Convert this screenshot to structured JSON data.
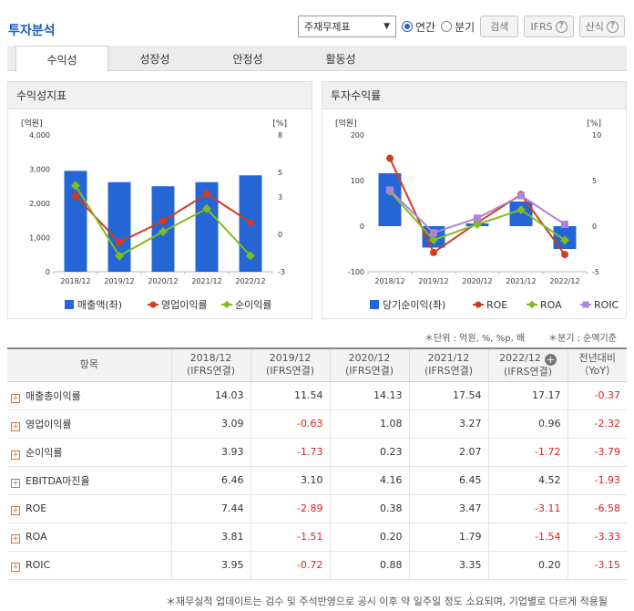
{
  "title": "투자분석",
  "controls": {
    "statement": "주재무제표",
    "radio_annual": "연간",
    "radio_quarter": "분기",
    "search_label": "검색",
    "ifrs_label": "IFRS",
    "formula_label": "산식",
    "help_glyph": "?"
  },
  "tabs": [
    "수익성",
    "성장성",
    "안정성",
    "활동성"
  ],
  "left_panel": {
    "title": "수익성지표",
    "unit_left": "[억원]",
    "unit_right": "[%]",
    "legend": [
      "매출액(좌)",
      "영업이익률",
      "순이익률"
    ]
  },
  "right_panel": {
    "title": "투자수익률",
    "unit_left": "[억원]",
    "unit_right": "[%]",
    "legend": [
      "당기순이익(좌)",
      "ROE",
      "ROA",
      "ROIC"
    ]
  },
  "chart_data": [
    {
      "type": "bar",
      "categories": [
        "2018/12",
        "2019/12",
        "2020/12",
        "2021/12",
        "2022/12"
      ],
      "series": [
        {
          "name": "매출액(좌)",
          "type": "bar",
          "axis": "left",
          "values": [
            2950,
            2620,
            2500,
            2620,
            2820
          ]
        },
        {
          "name": "영업이익률",
          "type": "line",
          "axis": "right",
          "values": [
            3.09,
            -0.63,
            1.08,
            3.27,
            0.96
          ]
        },
        {
          "name": "순이익률",
          "type": "line",
          "axis": "right",
          "values": [
            3.93,
            -1.73,
            0.23,
            2.07,
            -1.72
          ]
        }
      ],
      "y_left": {
        "min": 0,
        "max": 4000,
        "ticks": [
          "0",
          "1,000",
          "2,000",
          "3,000",
          "4,000"
        ]
      },
      "y_right": {
        "min": -3,
        "max": 8,
        "ticks": [
          "-3",
          "0",
          "3",
          "5",
          "8"
        ]
      },
      "colors": {
        "bar": "#2466d6",
        "line1": "#d03c1e",
        "line2": "#7fbc1e"
      },
      "grid": false,
      "legend_placement": "bottom"
    },
    {
      "type": "bar",
      "categories": [
        "2018/12",
        "2019/12",
        "2020/12",
        "2021/12",
        "2022/12"
      ],
      "series": [
        {
          "name": "당기순이익(좌)",
          "type": "bar",
          "axis": "left",
          "values": [
            116,
            -47,
            6,
            54,
            -50
          ]
        },
        {
          "name": "ROE",
          "type": "line",
          "axis": "right",
          "values": [
            7.44,
            -2.89,
            0.38,
            3.47,
            -3.11
          ]
        },
        {
          "name": "ROA",
          "type": "line",
          "axis": "right",
          "values": [
            3.81,
            -1.51,
            0.2,
            1.79,
            -1.54
          ]
        },
        {
          "name": "ROIC",
          "type": "line",
          "axis": "right",
          "values": [
            3.95,
            -0.72,
            0.88,
            3.35,
            0.2
          ]
        }
      ],
      "y_left": {
        "min": -100,
        "max": 200,
        "ticks": [
          "-100",
          "0",
          "100",
          "200"
        ]
      },
      "y_right": {
        "min": -5,
        "max": 10,
        "ticks": [
          "-5",
          "0",
          "5",
          "10"
        ]
      },
      "colors": {
        "bar": "#2466d6",
        "line1": "#d03c1e",
        "line2": "#7fbc1e",
        "line3": "#b184d9"
      },
      "grid": false,
      "legend_placement": "bottom"
    }
  ],
  "units_note": "＊단위 : 억원, %, %p, 배",
  "quarter_note": "＊분기 : 순액기준",
  "table": {
    "header_item": "항목",
    "period_sub": "(IFRS연결)",
    "periods": [
      "2018/12",
      "2019/12",
      "2020/12",
      "2021/12",
      "2022/12"
    ],
    "estimate_glyph": "+",
    "yoy_label_1": "전년대비",
    "yoy_label_2": "（YoY）",
    "expand_glyph": "+",
    "rows": [
      {
        "label": "매출총이익률",
        "values": [
          "14.03",
          "11.54",
          "14.13",
          "17.54",
          "17.17"
        ],
        "yoy": "-0.37"
      },
      {
        "label": "영업이익률",
        "values": [
          "3.09",
          "-0.63",
          "1.08",
          "3.27",
          "0.96"
        ],
        "yoy": "-2.32"
      },
      {
        "label": "순이익률",
        "values": [
          "3.93",
          "-1.73",
          "0.23",
          "2.07",
          "-1.72"
        ],
        "yoy": "-3.79"
      },
      {
        "label": "EBITDA마진율",
        "values": [
          "6.46",
          "3.10",
          "4.16",
          "6.45",
          "4.52"
        ],
        "yoy": "-1.93"
      },
      {
        "label": "ROE",
        "values": [
          "7.44",
          "-2.89",
          "0.38",
          "3.47",
          "-3.11"
        ],
        "yoy": "-6.58"
      },
      {
        "label": "ROA",
        "values": [
          "3.81",
          "-1.51",
          "0.20",
          "1.79",
          "-1.54"
        ],
        "yoy": "-3.33"
      },
      {
        "label": "ROIC",
        "values": [
          "3.95",
          "-0.72",
          "0.88",
          "3.35",
          "0.20"
        ],
        "yoy": "-3.15"
      }
    ]
  },
  "footer_note": "＊재무실적 업데이트는 검수 및 주석반영으로 공시 이후 약 일주일 정도 소요되며, 기업별로 다르게 적용될"
}
